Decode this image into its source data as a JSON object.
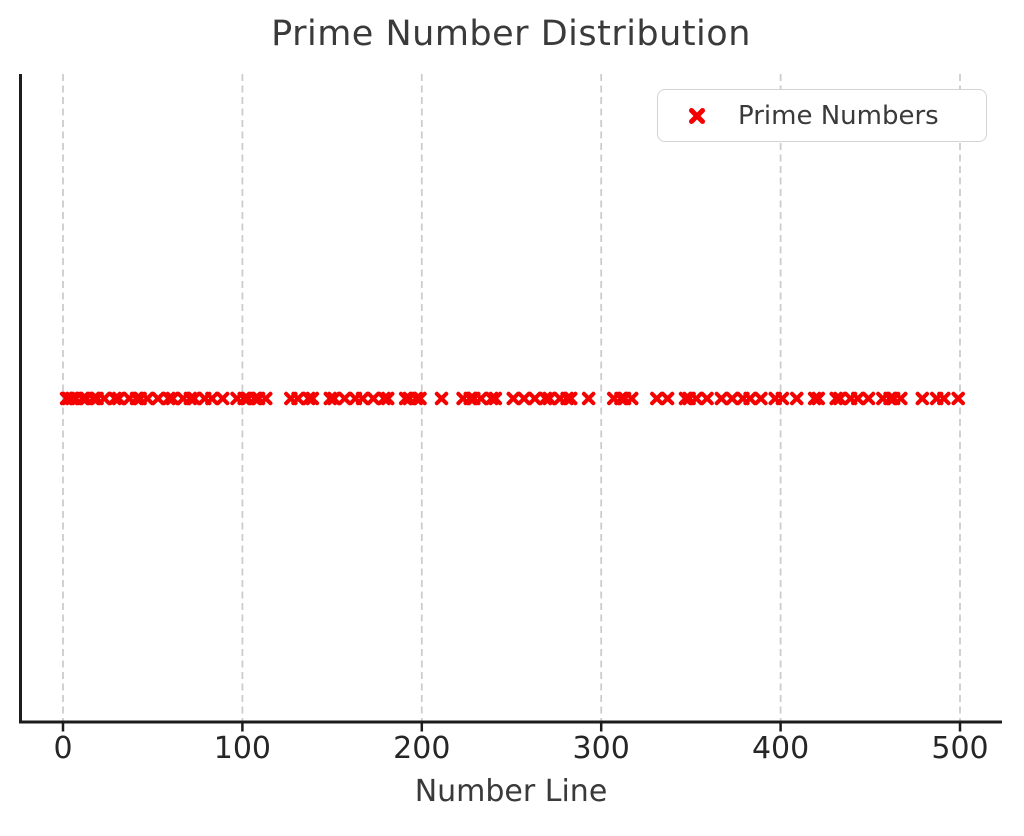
{
  "chart_data": {
    "type": "scatter",
    "title": "Prime Number Distribution",
    "xlabel": "Number Line",
    "ylabel": "",
    "xticks": [
      0,
      100,
      200,
      300,
      400,
      500
    ],
    "xlim": [
      -23,
      524
    ],
    "grid": "vertical-dashed",
    "legend_position": "upper right",
    "series": [
      {
        "name": "Prime Numbers",
        "marker": "X",
        "color": "#f40000",
        "y": 1,
        "x": [
          2,
          3,
          5,
          7,
          11,
          13,
          17,
          19,
          23,
          29,
          31,
          37,
          41,
          43,
          47,
          53,
          59,
          61,
          67,
          71,
          73,
          79,
          83,
          89,
          97,
          101,
          103,
          107,
          109,
          113,
          127,
          131,
          137,
          139,
          149,
          151,
          157,
          163,
          167,
          173,
          179,
          181,
          191,
          193,
          197,
          199,
          211,
          223,
          227,
          229,
          233,
          239,
          241,
          251,
          257,
          263,
          269,
          271,
          277,
          281,
          283,
          293,
          307,
          311,
          313,
          317,
          331,
          337,
          347,
          349,
          353,
          359,
          367,
          373,
          379,
          383,
          389,
          397,
          401,
          409,
          419,
          421,
          431,
          433,
          439,
          443,
          449,
          457,
          461,
          463,
          467,
          479,
          487,
          491,
          499
        ]
      }
    ]
  },
  "colors": {
    "marker": "#f40000",
    "grid": "#cccccc",
    "spine": "#1c1c1c",
    "title_text": "#3a3a3a",
    "tick_text": "#262626"
  }
}
